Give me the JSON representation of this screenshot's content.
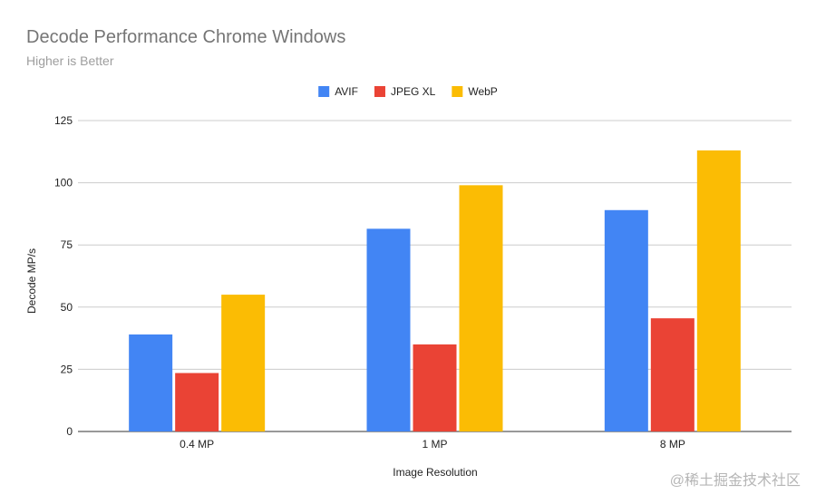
{
  "chart_data": {
    "type": "bar",
    "title": "Decode Performance Chrome Windows",
    "subtitle": "Higher is Better",
    "categories": [
      "0.4 MP",
      "1 MP",
      "8 MP"
    ],
    "series": [
      {
        "name": "AVIF",
        "color": "#4285f4",
        "values": [
          39,
          81.5,
          89
        ]
      },
      {
        "name": "JPEG XL",
        "color": "#ea4335",
        "values": [
          23.5,
          35,
          45.5
        ]
      },
      {
        "name": "WebP",
        "color": "#fbbc04",
        "values": [
          55,
          99,
          113
        ]
      }
    ],
    "xlabel": "Image Resolution",
    "ylabel": "Decode MP/s",
    "ylim": [
      0,
      125
    ],
    "yticks": [
      0,
      25,
      50,
      75,
      100,
      125
    ],
    "ytick_labels": [
      "0",
      "25",
      "50",
      "75",
      "100",
      "125"
    ],
    "grid": true,
    "legend_position": "top-center"
  },
  "watermark": "@稀土掘金技术社区"
}
